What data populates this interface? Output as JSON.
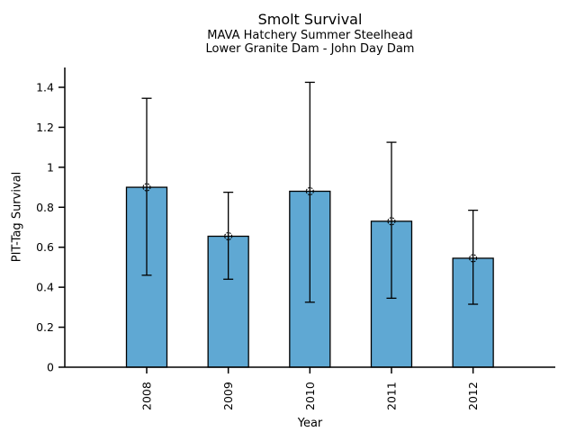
{
  "chart_data": {
    "type": "bar",
    "title": "Smolt Survival",
    "subtitle1": "MAVA Hatchery Summer Steelhead",
    "subtitle2": "Lower Granite Dam - John Day Dam",
    "xlabel": "Year",
    "ylabel": "PIT-Tag Survival",
    "categories": [
      "2008",
      "2009",
      "2010",
      "2011",
      "2012"
    ],
    "values": [
      0.9,
      0.655,
      0.88,
      0.73,
      0.545
    ],
    "error_low": [
      0.46,
      0.44,
      0.325,
      0.345,
      0.315
    ],
    "error_high": [
      1.345,
      0.875,
      1.425,
      1.125,
      0.785
    ],
    "ytick_labels": [
      "0",
      "0.2",
      "0.4",
      "0.6",
      "0.8",
      "1",
      "1.2",
      "1.4"
    ],
    "ytick_values": [
      0,
      0.2,
      0.4,
      0.6,
      0.8,
      1.0,
      1.2,
      1.4
    ],
    "ylim": [
      0,
      1.5
    ],
    "grid": false,
    "legend": null,
    "marker": "circle-plus",
    "colors": {
      "bar_fill": "#5FA8D3",
      "bar_edge": "#000000",
      "error_bar": "#000000",
      "axis": "#000000",
      "text": "#000000",
      "background": "#ffffff"
    }
  }
}
